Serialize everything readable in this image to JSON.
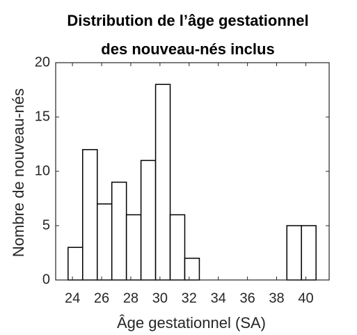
{
  "chart_data": {
    "type": "histogram",
    "title": [
      "Distribution de l’âge gestationnel",
      "des nouveau-nés inclus"
    ],
    "xlabel": "Âge gestationnel (SA)",
    "ylabel": "Nombre de nouveau-nés",
    "bins": [
      23.7,
      24.7,
      25.7,
      26.7,
      27.7,
      28.7,
      29.7,
      30.7,
      31.7,
      32.7,
      33.7,
      34.7,
      35.7,
      36.7,
      37.7,
      38.7,
      39.7,
      40.7
    ],
    "counts": [
      3,
      12,
      7,
      9,
      6,
      11,
      18,
      6,
      2,
      0,
      0,
      0,
      0,
      0,
      0,
      5,
      5
    ],
    "color": "#ffffff",
    "edgecolor": "#000000",
    "xlim": [
      22.85,
      41.6
    ],
    "ylim": [
      0,
      20
    ],
    "xticks": [
      24,
      26,
      28,
      30,
      32,
      34,
      36,
      38,
      40
    ],
    "yticks": [
      0,
      5,
      10,
      15,
      20
    ]
  }
}
